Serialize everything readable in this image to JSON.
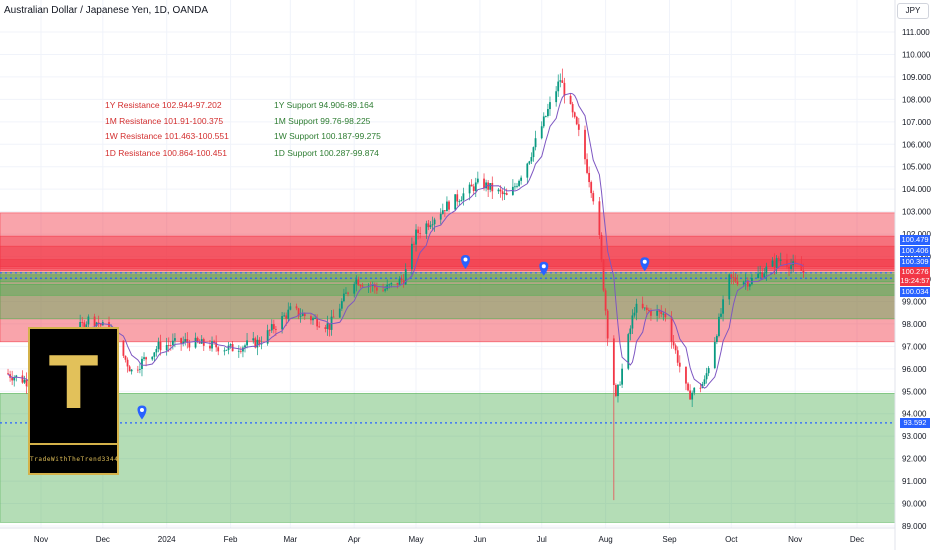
{
  "header": {
    "title": "Australian Dollar / Japanese Yen, 1D, OANDA",
    "currency_button": "JPY"
  },
  "logo": {
    "letter": "T",
    "name": "TradeWithTheTrend3344"
  },
  "price_tags": {
    "r1": "100.479",
    "r2": "100.406",
    "r3": "100.309",
    "last": "100.276",
    "countdown": "19:24:57",
    "s1": "100.034",
    "support_level": "93.592"
  },
  "chart_data": {
    "type": "candlestick",
    "title": "Australian Dollar / Japanese Yen, 1D, OANDA",
    "ylim": [
      89,
      112
    ],
    "yticks": [
      89,
      90,
      91,
      92,
      93,
      94,
      95,
      96,
      97,
      98,
      99,
      100,
      101,
      102,
      103,
      104,
      105,
      106,
      107,
      108,
      109,
      110,
      111
    ],
    "ytick_labels": [
      "89.000",
      "90.000",
      "91.000",
      "92.000",
      "93.000",
      "94.000",
      "95.000",
      "96.000",
      "97.000",
      "98.000",
      "99.000",
      "100.000",
      "101.000",
      "102.000",
      "103.000",
      "104.000",
      "105.000",
      "106.000",
      "107.000",
      "108.000",
      "109.000",
      "110.000",
      "111.000"
    ],
    "x_labels": [
      "Nov",
      "Dec",
      "2024",
      "Feb",
      "Mar",
      "Apr",
      "May",
      "Jun",
      "Jul",
      "Aug",
      "Sep",
      "Oct",
      "Nov",
      "Dec"
    ],
    "x_label_dates": [
      "2023-11-01",
      "2023-12-01",
      "2024-01-01",
      "2024-02-01",
      "2024-03-01",
      "2024-04-01",
      "2024-05-01",
      "2024-06-01",
      "2024-07-01",
      "2024-08-01",
      "2024-09-01",
      "2024-10-01",
      "2024-11-01",
      "2024-12-01"
    ],
    "price_path": [
      {
        "date": "2023-10-15",
        "price": 95.8
      },
      {
        "date": "2023-11-01",
        "price": 95.2
      },
      {
        "date": "2023-11-15",
        "price": 97.4
      },
      {
        "date": "2023-11-25",
        "price": 98.3
      },
      {
        "date": "2023-12-05",
        "price": 97.6
      },
      {
        "date": "2023-12-15",
        "price": 95.9
      },
      {
        "date": "2023-12-28",
        "price": 97.0
      },
      {
        "date": "2024-01-10",
        "price": 97.2
      },
      {
        "date": "2024-01-25",
        "price": 97.0
      },
      {
        "date": "2024-02-01",
        "price": 96.9
      },
      {
        "date": "2024-02-15",
        "price": 97.2
      },
      {
        "date": "2024-03-01",
        "price": 98.6
      },
      {
        "date": "2024-03-10",
        "price": 98.3
      },
      {
        "date": "2024-03-20",
        "price": 97.9
      },
      {
        "date": "2024-04-01",
        "price": 100.0
      },
      {
        "date": "2024-04-15",
        "price": 99.5
      },
      {
        "date": "2024-04-25",
        "price": 100.0
      },
      {
        "date": "2024-05-01",
        "price": 102.0
      },
      {
        "date": "2024-05-15",
        "price": 103.2
      },
      {
        "date": "2024-06-01",
        "price": 104.3
      },
      {
        "date": "2024-06-15",
        "price": 103.6
      },
      {
        "date": "2024-06-25",
        "price": 105.4
      },
      {
        "date": "2024-07-10",
        "price": 108.9
      },
      {
        "date": "2024-07-20",
        "price": 106.2
      },
      {
        "date": "2024-07-28",
        "price": 102.8
      },
      {
        "date": "2024-08-02",
        "price": 97.6
      },
      {
        "date": "2024-08-06",
        "price": 94.6
      },
      {
        "date": "2024-08-15",
        "price": 98.7
      },
      {
        "date": "2024-08-30",
        "price": 98.4
      },
      {
        "date": "2024-09-10",
        "price": 94.8
      },
      {
        "date": "2024-09-18",
        "price": 95.4
      },
      {
        "date": "2024-09-30",
        "price": 100.0
      },
      {
        "date": "2024-10-10",
        "price": 99.9
      },
      {
        "date": "2024-10-25",
        "price": 100.9
      },
      {
        "date": "2024-11-05",
        "price": 100.3
      }
    ],
    "extremes": {
      "high_date": "2024-07-11",
      "high": 109.37,
      "low_date": "2024-08-05",
      "low": 90.15
    },
    "zones": [
      {
        "kind": "resistance",
        "from": 97.202,
        "to": 102.944,
        "color": "#f23645"
      },
      {
        "kind": "resistance",
        "from": 100.375,
        "to": 101.91,
        "color": "#f23645"
      },
      {
        "kind": "resistance",
        "from": 100.551,
        "to": 101.463,
        "color": "#f23645"
      },
      {
        "kind": "resistance",
        "from": 100.451,
        "to": 100.864,
        "color": "#f23645"
      },
      {
        "kind": "support",
        "from": 89.164,
        "to": 94.906,
        "color": "#4caf50"
      },
      {
        "kind": "support",
        "from": 98.225,
        "to": 99.76,
        "color": "#4caf50"
      },
      {
        "kind": "support",
        "from": 99.275,
        "to": 100.187,
        "color": "#4caf50"
      },
      {
        "kind": "support",
        "from": 99.874,
        "to": 100.287,
        "color": "#4caf50"
      }
    ],
    "dotted_lines": [
      {
        "price": 100.276,
        "color": "#2962ff"
      },
      {
        "price": 100.034,
        "color": "#2962ff"
      },
      {
        "price": 93.592,
        "color": "#2962ff"
      }
    ],
    "markers": [
      {
        "date": "2023-12-20",
        "price": 94.1
      },
      {
        "date": "2024-05-25",
        "price": 100.8
      },
      {
        "date": "2024-07-02",
        "price": 100.5
      },
      {
        "date": "2024-08-20",
        "price": 100.7
      }
    ],
    "annotations": {
      "resistance": [
        "1Y Resistance 102.944-97.202",
        "1M Resistance 101.91-100.375",
        "1W Resistance 101.463-100.551",
        "1D Resistance 100.864-100.451"
      ],
      "support": [
        "1Y Support 94.906-89.164",
        "1M Support 99.76-98.225",
        "1W Support 100.187-99.275",
        "1D Support 100.287-99.874"
      ]
    },
    "colors": {
      "up": "#089981",
      "down": "#f23645",
      "ma": "#7e57c2",
      "resistance_text": "#d32f2f",
      "support_text": "#2e7d32"
    }
  }
}
